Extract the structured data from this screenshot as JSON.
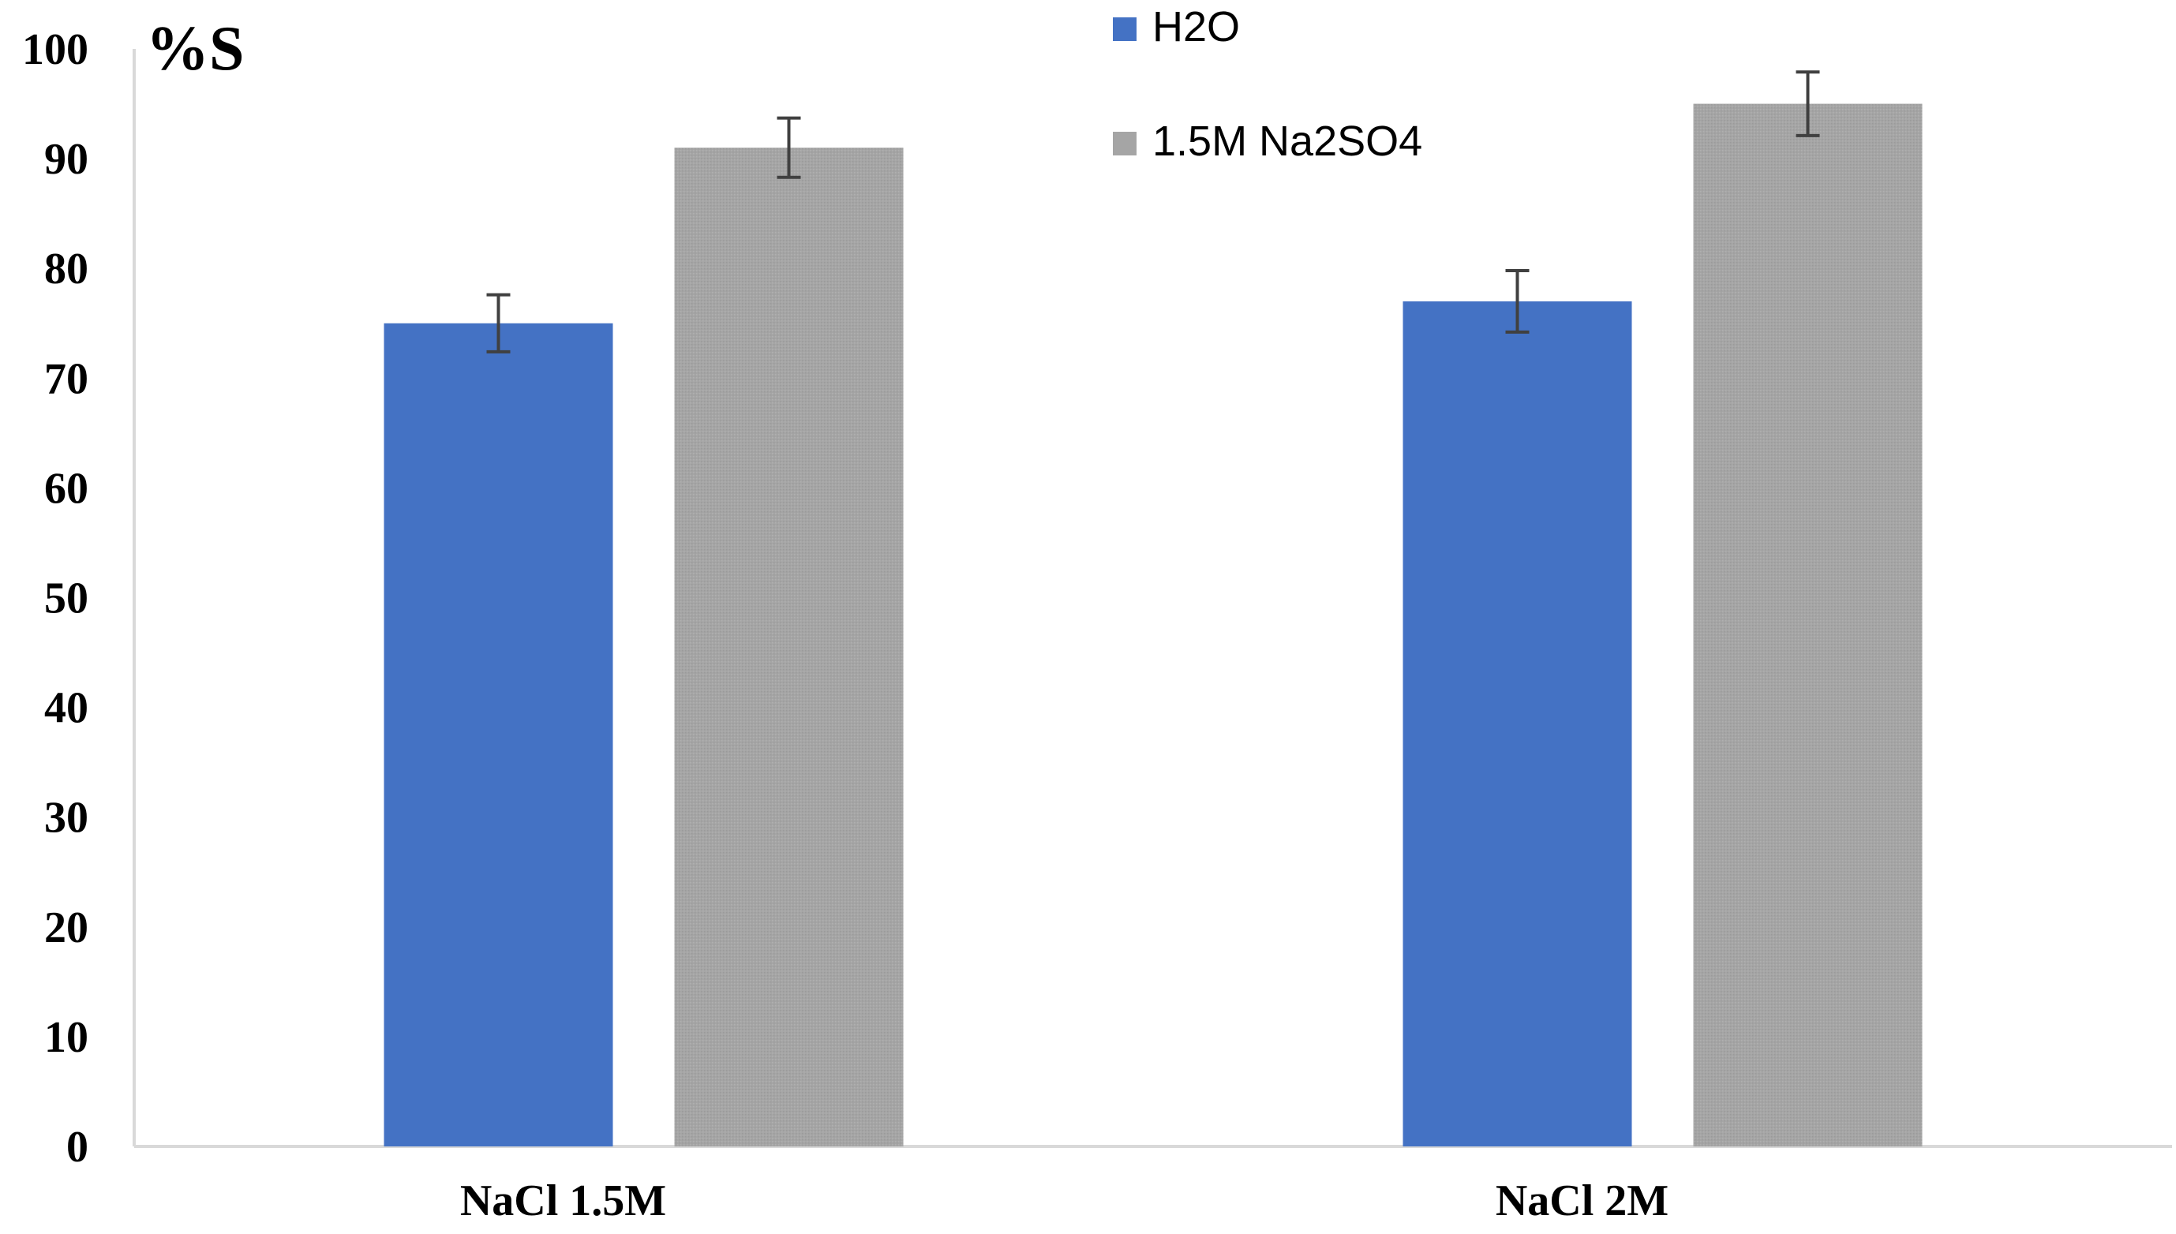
{
  "chart_data": {
    "type": "bar",
    "title": "",
    "ylabel": "%S",
    "xlabel": "",
    "ylim": [
      0,
      100
    ],
    "yticks": [
      "0",
      "10",
      "20",
      "30",
      "40",
      "50",
      "60",
      "70",
      "80",
      "90",
      "100"
    ],
    "categories": [
      "NaCl 1.5M",
      "NaCl 2M"
    ],
    "series": [
      {
        "name": "H2O",
        "color": "#4472C4",
        "values": [
          75.0,
          77.0
        ],
        "error": [
          2.6,
          2.8
        ]
      },
      {
        "name": "1.5M Na2SO4",
        "color": "#A5A5A5",
        "values": [
          91.0,
          95.0
        ],
        "error": [
          2.7,
          2.9
        ]
      }
    ],
    "legend": "top-center",
    "grid": false
  }
}
